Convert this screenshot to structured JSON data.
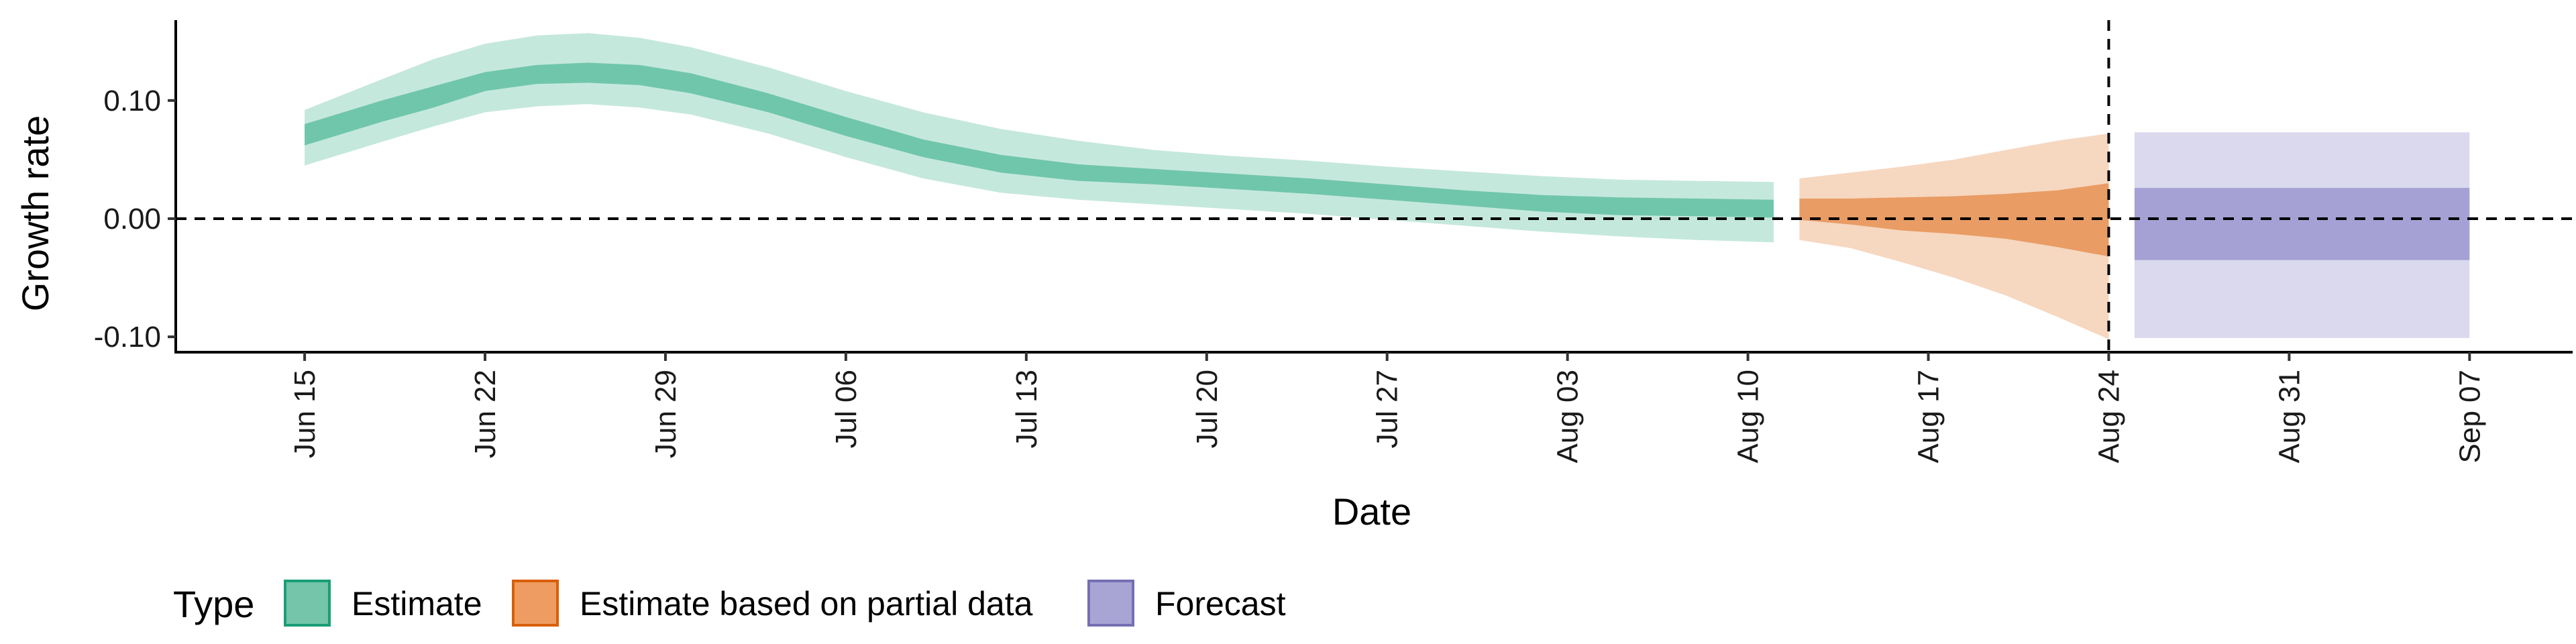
{
  "chart_data": {
    "type": "area",
    "xlabel": "Date",
    "ylabel": "Growth rate",
    "x_ticks": [
      "Jun 15",
      "Jun 22",
      "Jun 29",
      "Jul 06",
      "Jul 13",
      "Jul 20",
      "Jul 27",
      "Aug 03",
      "Aug 10",
      "Aug 17",
      "Aug 24",
      "Aug 31",
      "Sep 07"
    ],
    "y_ticks": [
      "0.10",
      "0.00",
      "-0.10"
    ],
    "y_tick_values": [
      0.1,
      0.0,
      -0.1
    ],
    "ylim": [
      -0.113,
      0.168
    ],
    "xlim": [
      "2020-06-10",
      "2020-09-11"
    ],
    "reference_lines": {
      "horizontal_y": 0.0,
      "vertical_x": "2020-08-24"
    },
    "legend": {
      "title": "Type",
      "position": "bottom-left",
      "entries": [
        {
          "label": "Estimate",
          "color": "#66C2A5"
        },
        {
          "label": "Estimate based on partial data",
          "color": "#E8965A"
        },
        {
          "label": "Forecast",
          "color": "#9E9AD0"
        }
      ]
    },
    "series": [
      {
        "name": "Estimate",
        "color": "#66C2A5",
        "x": [
          "2020-06-15",
          "2020-06-18",
          "2020-06-20",
          "2020-06-22",
          "2020-06-24",
          "2020-06-26",
          "2020-06-28",
          "2020-06-30",
          "2020-07-03",
          "2020-07-06",
          "2020-07-09",
          "2020-07-12",
          "2020-07-15",
          "2020-07-18",
          "2020-07-21",
          "2020-07-24",
          "2020-07-27",
          "2020-07-30",
          "2020-08-02",
          "2020-08-05",
          "2020-08-08",
          "2020-08-11"
        ],
        "outer_upper": [
          0.092,
          0.118,
          0.135,
          0.148,
          0.155,
          0.157,
          0.153,
          0.145,
          0.128,
          0.108,
          0.09,
          0.076,
          0.066,
          0.058,
          0.053,
          0.049,
          0.044,
          0.04,
          0.036,
          0.033,
          0.032,
          0.031
        ],
        "inner_upper": [
          0.08,
          0.1,
          0.112,
          0.124,
          0.13,
          0.132,
          0.13,
          0.123,
          0.106,
          0.086,
          0.067,
          0.054,
          0.046,
          0.042,
          0.038,
          0.034,
          0.029,
          0.024,
          0.02,
          0.018,
          0.017,
          0.016
        ],
        "inner_lower": [
          0.062,
          0.082,
          0.094,
          0.108,
          0.114,
          0.115,
          0.113,
          0.106,
          0.09,
          0.07,
          0.052,
          0.039,
          0.032,
          0.029,
          0.025,
          0.021,
          0.016,
          0.011,
          0.006,
          0.003,
          0.002,
          0.001
        ],
        "outer_lower": [
          0.045,
          0.065,
          0.078,
          0.09,
          0.095,
          0.097,
          0.094,
          0.088,
          0.072,
          0.052,
          0.034,
          0.022,
          0.016,
          0.012,
          0.008,
          0.004,
          -0.001,
          -0.006,
          -0.011,
          -0.015,
          -0.018,
          -0.02
        ]
      },
      {
        "name": "Estimate based on partial data",
        "color": "#E8965A",
        "x": [
          "2020-08-12",
          "2020-08-14",
          "2020-08-16",
          "2020-08-18",
          "2020-08-20",
          "2020-08-22",
          "2020-08-24"
        ],
        "outer_upper": [
          0.034,
          0.039,
          0.044,
          0.05,
          0.058,
          0.066,
          0.072
        ],
        "inner_upper": [
          0.017,
          0.017,
          0.018,
          0.019,
          0.021,
          0.024,
          0.03
        ],
        "inner_lower": [
          -0.001,
          -0.005,
          -0.01,
          -0.013,
          -0.017,
          -0.024,
          -0.032
        ],
        "outer_lower": [
          -0.018,
          -0.025,
          -0.037,
          -0.05,
          -0.065,
          -0.083,
          -0.102
        ]
      },
      {
        "name": "Forecast",
        "color": "#9E9AD0",
        "x": [
          "2020-08-25",
          "2020-09-07"
        ],
        "outer_upper": [
          0.073,
          0.073
        ],
        "inner_upper": [
          0.026,
          0.026
        ],
        "inner_lower": [
          -0.035,
          -0.035
        ],
        "outer_lower": [
          -0.101,
          -0.101
        ]
      }
    ]
  }
}
